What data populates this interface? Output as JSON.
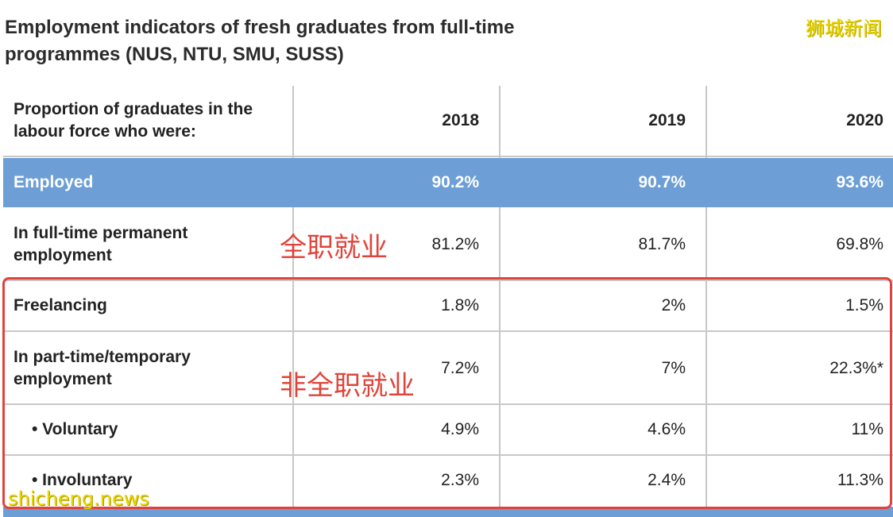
{
  "title": "Employment indicators of fresh graduates from full-time programmes (NUS, NTU, SMU, SUSS)",
  "watermarks": {
    "top": "狮城新闻",
    "bottom": "shicheng.news"
  },
  "annotations": {
    "fulltime": "全职就业",
    "nonfulltime": "非全职就业"
  },
  "colors": {
    "header_bar": "#6d9fd6",
    "highlight_box": "#e0433a",
    "watermark": "#e8d600"
  },
  "chart_data": {
    "type": "table",
    "columns": [
      "Proportion of graduates in the labour force who were:",
      "2018",
      "2019",
      "2020"
    ],
    "rows": [
      {
        "label": "Employed",
        "values": [
          "90.2%",
          "90.7%",
          "93.6%"
        ]
      },
      {
        "label": "In full-time permanent employment",
        "values": [
          "81.2%",
          "81.7%",
          "69.8%"
        ]
      },
      {
        "label": "Freelancing",
        "values": [
          "1.8%",
          "2%",
          "1.5%"
        ]
      },
      {
        "label": "In part-time/temporary employment",
        "values": [
          "7.2%",
          "7%",
          "22.3%*"
        ]
      },
      {
        "label": "• Voluntary",
        "values": [
          "4.9%",
          "4.6%",
          "11%"
        ]
      },
      {
        "label": "• Involuntary",
        "values": [
          "2.3%",
          "2.4%",
          "11.3%"
        ]
      }
    ]
  }
}
